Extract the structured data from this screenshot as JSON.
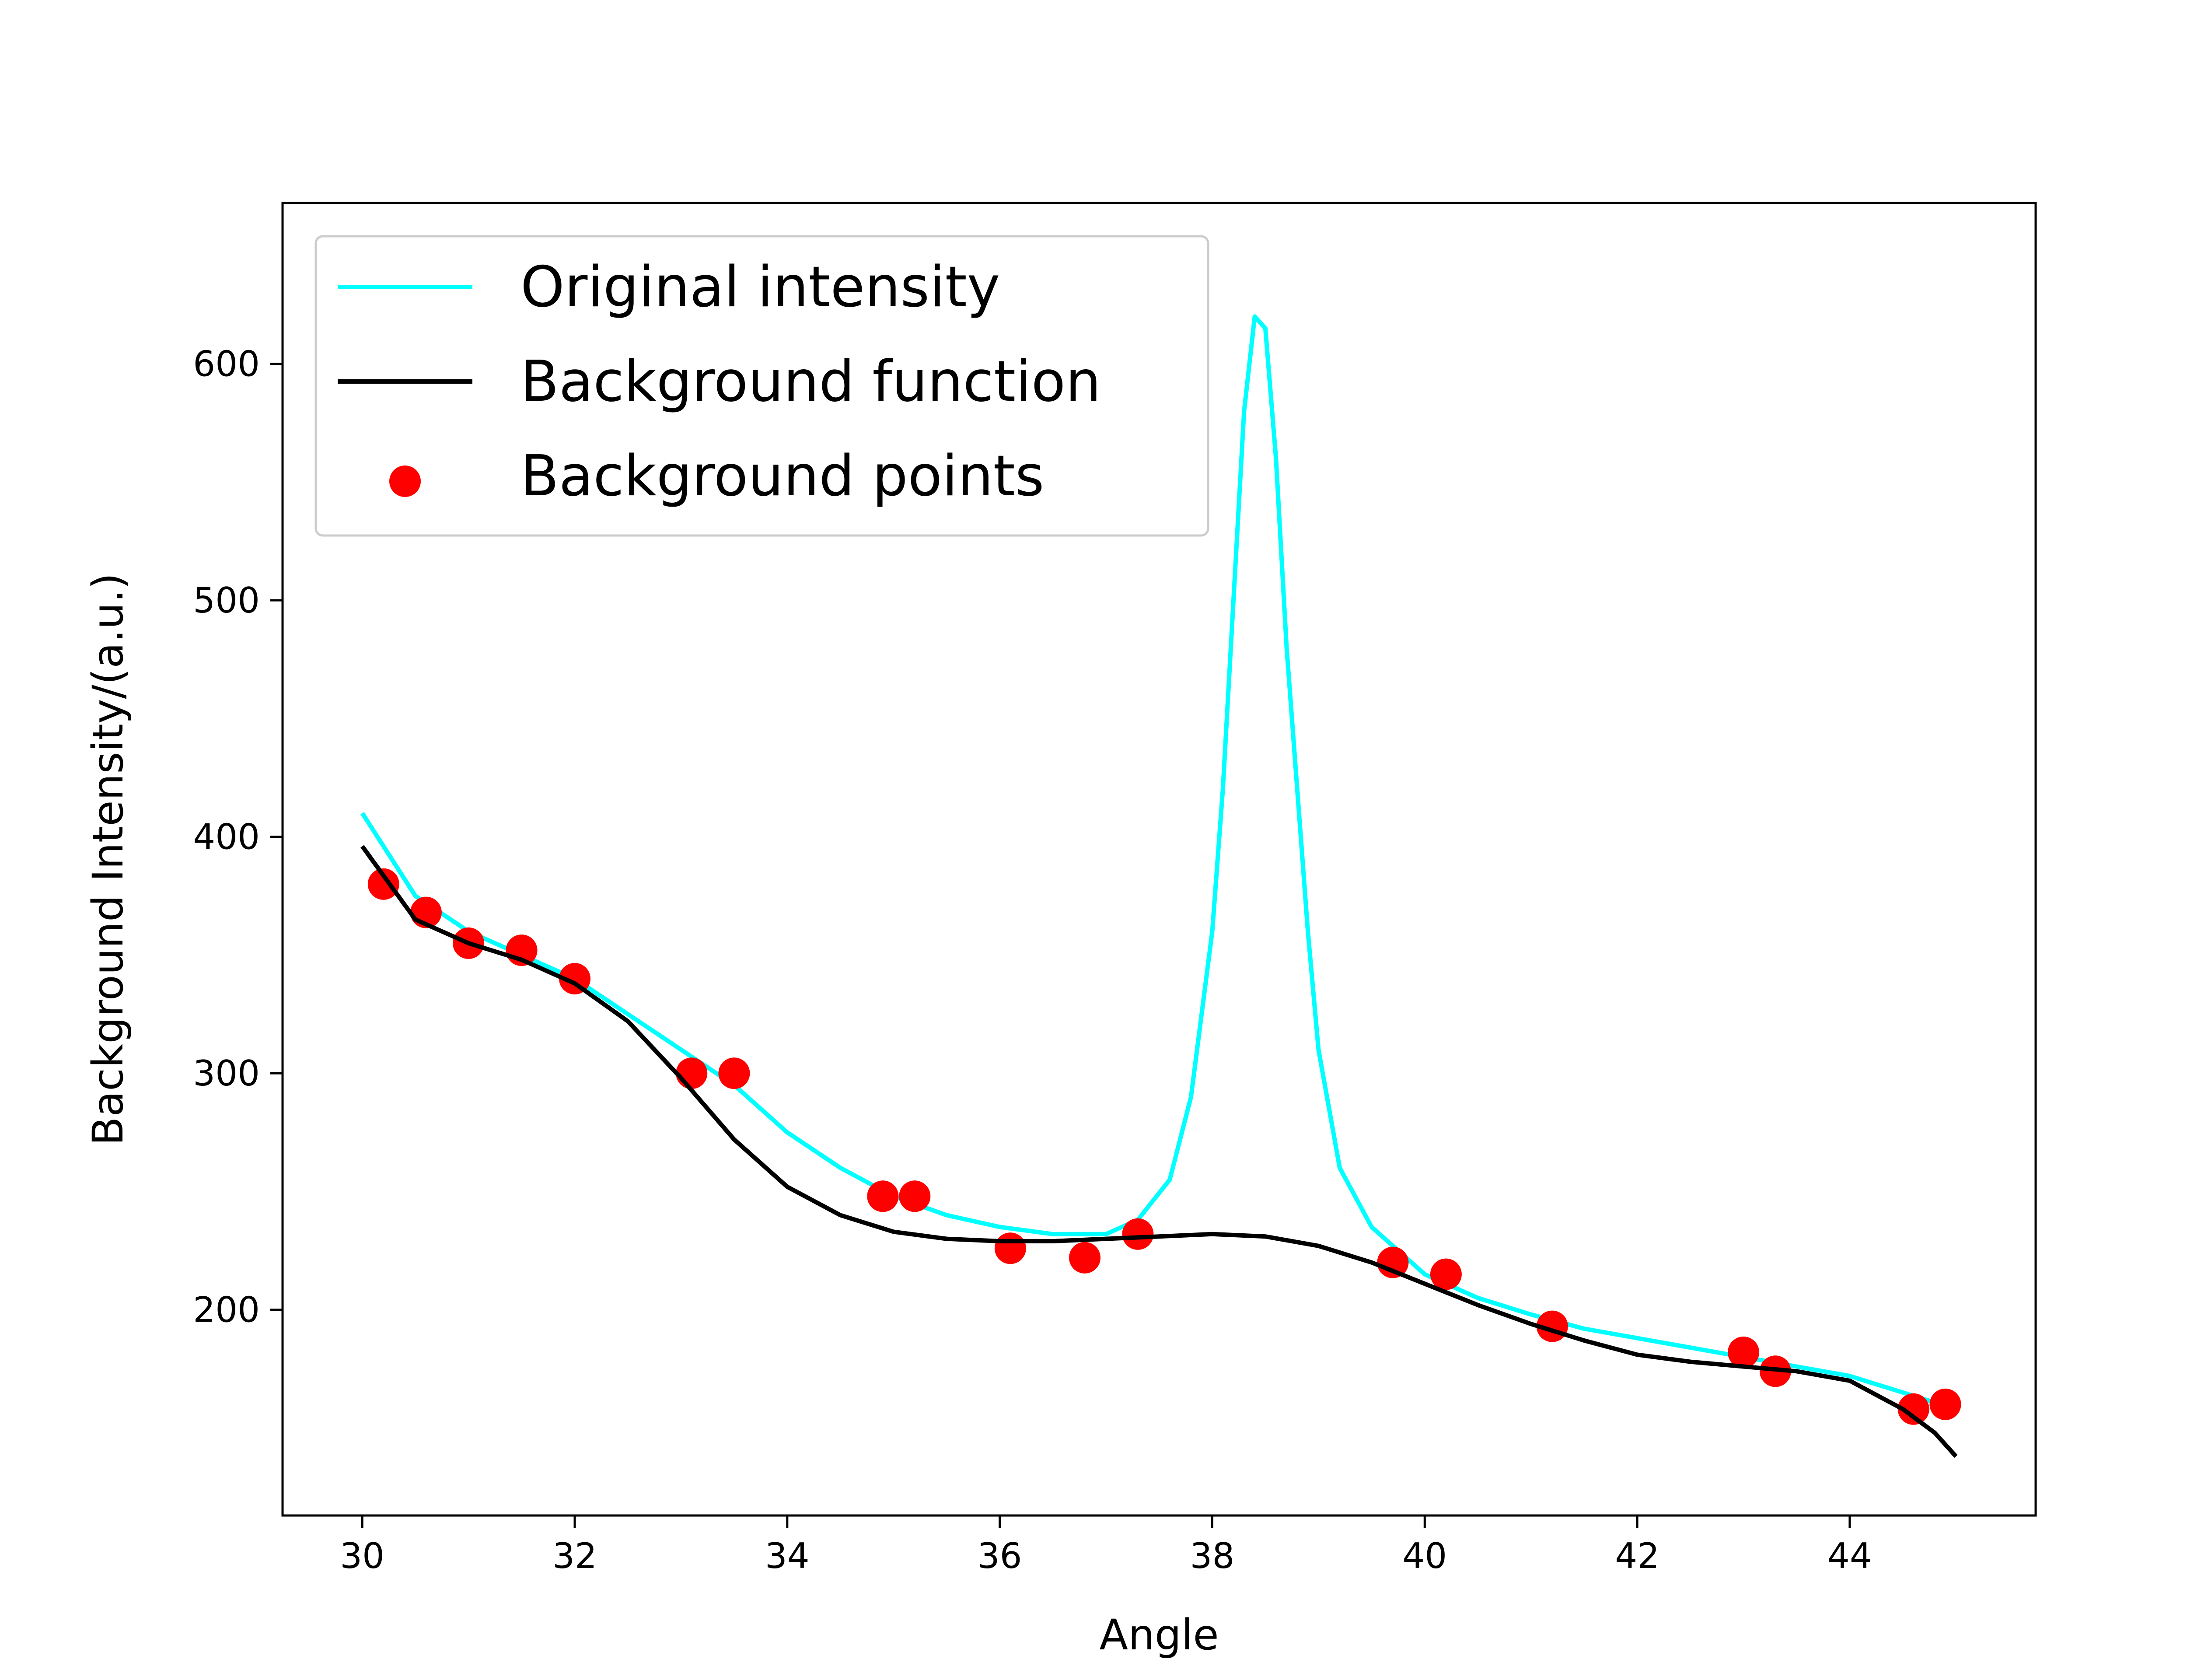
{
  "chart_data": {
    "type": "line",
    "title": "",
    "xlabel": "Angle",
    "ylabel": "Background Intensity/(a.u.)",
    "xlim": [
      29.25,
      45.75
    ],
    "ylim": [
      113,
      668
    ],
    "xticks": [
      30,
      32,
      34,
      36,
      38,
      40,
      42,
      44
    ],
    "yticks": [
      200,
      300,
      400,
      500,
      600
    ],
    "grid": false,
    "legend_position": "top-left",
    "colors": {
      "original": "#00ffff",
      "background_fn": "#000000",
      "points": "#ff0000"
    },
    "series": [
      {
        "name": "Original intensity",
        "kind": "line",
        "x": [
          30.0,
          30.5,
          31.0,
          31.5,
          32.0,
          32.5,
          33.0,
          33.5,
          34.0,
          34.5,
          35.0,
          35.5,
          36.0,
          36.5,
          37.0,
          37.3,
          37.6,
          37.8,
          38.0,
          38.1,
          38.2,
          38.3,
          38.4,
          38.5,
          38.6,
          38.7,
          38.8,
          38.9,
          39.0,
          39.2,
          39.5,
          40.0,
          40.5,
          41.0,
          41.5,
          42.0,
          42.5,
          43.0,
          43.5,
          44.0,
          44.5,
          45.0
        ],
        "y": [
          410,
          375,
          360,
          350,
          340,
          325,
          310,
          295,
          275,
          260,
          248,
          240,
          235,
          232,
          232,
          238,
          255,
          290,
          360,
          420,
          500,
          580,
          620,
          615,
          560,
          480,
          420,
          360,
          310,
          260,
          235,
          215,
          205,
          198,
          192,
          188,
          184,
          180,
          176,
          172,
          165,
          158
        ]
      },
      {
        "name": "Background function",
        "kind": "line",
        "x": [
          30.0,
          30.5,
          31.0,
          31.5,
          32.0,
          32.5,
          33.0,
          33.5,
          34.0,
          34.5,
          35.0,
          35.5,
          36.0,
          36.5,
          37.0,
          37.5,
          38.0,
          38.5,
          39.0,
          39.5,
          40.0,
          40.5,
          41.0,
          41.5,
          42.0,
          42.5,
          43.0,
          43.5,
          44.0,
          44.5,
          44.8,
          45.0
        ],
        "y": [
          396,
          365,
          355,
          348,
          338,
          322,
          298,
          272,
          252,
          240,
          233,
          230,
          229,
          229,
          230,
          231,
          232,
          231,
          227,
          220,
          211,
          202,
          194,
          187,
          181,
          178,
          176,
          174,
          170,
          158,
          148,
          138
        ]
      },
      {
        "name": "Background points",
        "kind": "scatter",
        "x": [
          30.2,
          30.6,
          31.0,
          31.5,
          32.0,
          33.1,
          33.5,
          34.9,
          35.2,
          36.1,
          36.8,
          37.3,
          39.7,
          40.2,
          41.2,
          43.0,
          43.3,
          44.6,
          44.9
        ],
        "y": [
          380,
          368,
          355,
          352,
          340,
          300,
          300,
          248,
          248,
          226,
          222,
          232,
          220,
          215,
          193,
          182,
          174,
          158,
          160
        ]
      }
    ]
  }
}
